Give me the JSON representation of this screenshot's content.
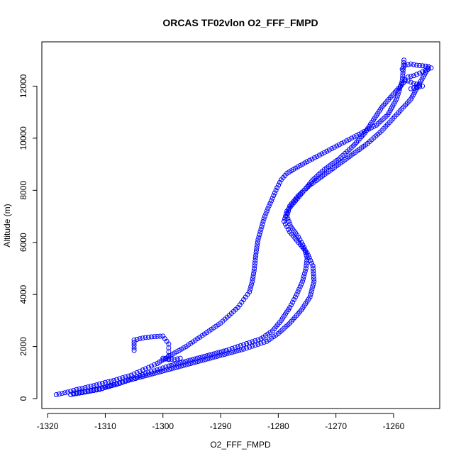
{
  "chart_data": {
    "type": "scatter",
    "title": "ORCAS TF02vlon O2_FFF_FMPD",
    "xlabel": "O2_FFF_FMPD",
    "ylabel": "Altitude (m)",
    "xlim": [
      -1321,
      -1252
    ],
    "ylim": [
      -380,
      13700
    ],
    "xticks": [
      -1320,
      -1310,
      -1300,
      -1290,
      -1280,
      -1270,
      -1260
    ],
    "yticks": [
      0,
      2000,
      4000,
      6000,
      8000,
      10000,
      12000
    ],
    "grid": false,
    "legend": "none",
    "marker": "open-circle",
    "color": "#0000ff",
    "series": [
      {
        "x": [
          -1318.5,
          -1317.5,
          -1316.0,
          -1315.0,
          -1313.5,
          -1312.0,
          -1311.0,
          -1310.0,
          -1308.5,
          -1307.0,
          -1305.5,
          -1304.0,
          -1302.5,
          -1301.0,
          -1299.5,
          -1298.0,
          -1296.0,
          -1294.0,
          -1292.0,
          -1290.0,
          -1288.5,
          -1287.0,
          -1286.0,
          -1285.0,
          -1284.5,
          -1284.2,
          -1284.0,
          -1283.8,
          -1283.5,
          -1283.0,
          -1282.5,
          -1281.8,
          -1281.0,
          -1280.2,
          -1279.5,
          -1278.5,
          -1277.0,
          -1275.0,
          -1272.0,
          -1269.0,
          -1266.0,
          -1263.0,
          -1261.0,
          -1259.5,
          -1258.5,
          -1258.2
        ],
        "y": [
          150,
          200,
          280,
          350,
          420,
          500,
          560,
          620,
          700,
          800,
          900,
          1050,
          1200,
          1350,
          1550,
          1750,
          2000,
          2300,
          2600,
          2900,
          3200,
          3500,
          3800,
          4100,
          4500,
          4900,
          5300,
          5700,
          6100,
          6500,
          6900,
          7300,
          7700,
          8100,
          8400,
          8650,
          8850,
          9100,
          9450,
          9800,
          10150,
          10500,
          10900,
          11500,
          12200,
          13000
        ]
      },
      {
        "x": [
          -1316.0,
          -1313.5,
          -1311.0,
          -1309.0,
          -1307.0,
          -1305.0,
          -1303.0,
          -1301.0,
          -1299.0,
          -1296.5,
          -1294.0,
          -1291.5,
          -1289.0,
          -1287.0,
          -1285.0,
          -1283.0,
          -1281.0,
          -1279.5,
          -1278.0,
          -1276.8,
          -1275.8,
          -1275.2,
          -1275.0,
          -1275.5,
          -1276.5,
          -1277.8,
          -1278.5,
          -1278.0,
          -1276.5,
          -1274.5,
          -1272.0,
          -1269.5,
          -1267.0,
          -1264.5,
          -1262.0,
          -1259.5,
          -1257.0,
          -1255.5,
          -1254.0
        ],
        "y": [
          150,
          250,
          350,
          500,
          650,
          800,
          950,
          1100,
          1250,
          1400,
          1550,
          1700,
          1850,
          2000,
          2150,
          2300,
          2600,
          3000,
          3500,
          4000,
          4500,
          5000,
          5400,
          5800,
          6200,
          6600,
          7000,
          7400,
          7800,
          8200,
          8600,
          9000,
          9400,
          9800,
          10300,
          10900,
          11500,
          12100,
          12700
        ]
      },
      {
        "x": [
          -1315.5,
          -1313.0,
          -1310.5,
          -1308.0,
          -1306.0,
          -1303.5,
          -1301.0,
          -1298.5,
          -1296.0,
          -1293.5,
          -1291.0,
          -1288.5,
          -1286.0,
          -1284.0,
          -1282.0,
          -1280.0,
          -1278.0,
          -1276.0,
          -1274.5,
          -1273.8,
          -1274.0,
          -1275.0,
          -1276.5,
          -1278.0,
          -1279.0,
          -1278.5,
          -1277.0,
          -1275.5,
          -1274.0,
          -1272.0,
          -1269.5,
          -1267.0,
          -1265.0,
          -1263.5,
          -1262.0,
          -1260.0,
          -1258.0
        ],
        "y": [
          200,
          300,
          400,
          550,
          700,
          850,
          1000,
          1150,
          1300,
          1450,
          1600,
          1750,
          1900,
          2050,
          2200,
          2500,
          2900,
          3400,
          3900,
          4500,
          5100,
          5600,
          6000,
          6400,
          6800,
          7200,
          7600,
          8000,
          8400,
          8800,
          9200,
          9700,
          10200,
          10700,
          11200,
          11700,
          12200
        ]
      },
      {
        "x": [
          -1305,
          -1305,
          -1305,
          -1305,
          -1305,
          -1303,
          -1301.5,
          -1300.0,
          -1299.0,
          -1299.0,
          -1299.0,
          -1299.0,
          -1299.0,
          -1300.0,
          -1298.0,
          -1297.0
        ],
        "y": [
          1850,
          1950,
          2050,
          2150,
          2250,
          2350,
          2380,
          2400,
          2100,
          1950,
          1800,
          1650,
          1500,
          1550,
          1500,
          1550
        ]
      },
      {
        "x": [
          -1258.5,
          -1258.0,
          -1257.0,
          -1256.0,
          -1255.0,
          -1254.0,
          -1253.5,
          -1254.5,
          -1255.5,
          -1256.5,
          -1257.5,
          -1258.0,
          -1256.5,
          -1255.5,
          -1255.0,
          -1256.0,
          -1257.0
        ],
        "y": [
          12650,
          12800,
          12850,
          12800,
          12780,
          12760,
          12700,
          12600,
          12500,
          12400,
          12350,
          12250,
          12100,
          12050,
          12000,
          11950,
          11900
        ]
      }
    ]
  }
}
